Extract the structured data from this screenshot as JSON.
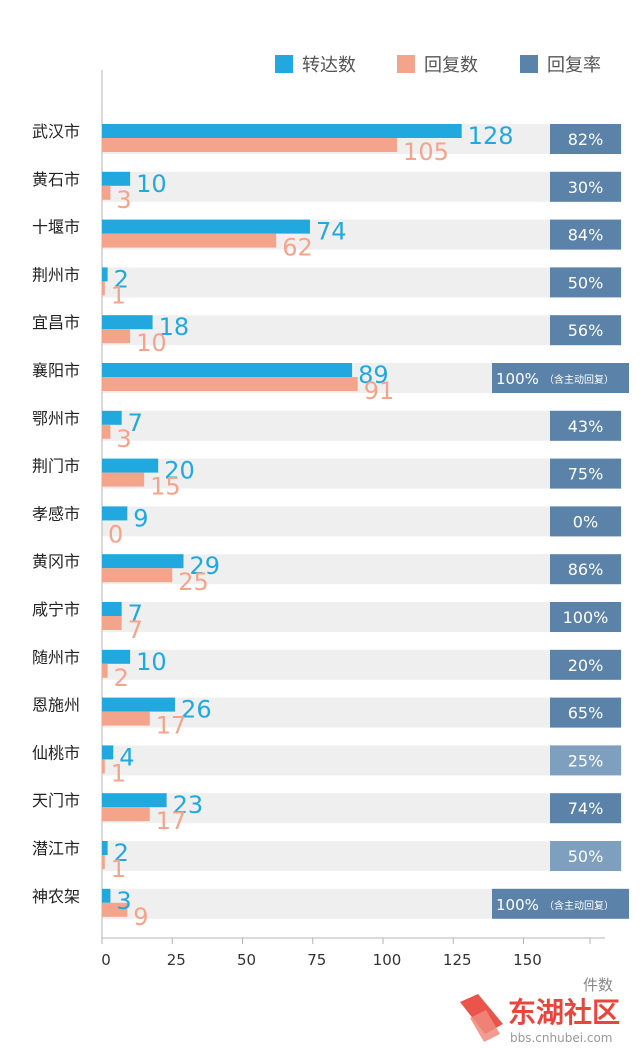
{
  "chart_data": {
    "type": "bar",
    "orientation": "horizontal",
    "legend": {
      "placement": "top-right",
      "entries": [
        {
          "name": "转达数",
          "color": "#21a9df"
        },
        {
          "name": "回复数",
          "color": "#f5a48c"
        },
        {
          "name": "回复率",
          "color": "#5b82a8"
        }
      ]
    },
    "categories": [
      "武汉市",
      "黄石市",
      "十堰市",
      "荆州市",
      "宜昌市",
      "襄阳市",
      "鄂州市",
      "荆门市",
      "孝感市",
      "黄冈市",
      "咸宁市",
      "随州市",
      "恩施州",
      "仙桃市",
      "天门市",
      "潜江市",
      "神农架"
    ],
    "series": [
      {
        "name": "转达数",
        "color": "#21a9df",
        "values": [
          128,
          10,
          74,
          2,
          18,
          89,
          7,
          20,
          9,
          29,
          7,
          10,
          26,
          4,
          23,
          2,
          3
        ]
      },
      {
        "name": "回复数",
        "color": "#f5a48c",
        "values": [
          105,
          3,
          62,
          1,
          10,
          91,
          3,
          15,
          0,
          25,
          7,
          2,
          17,
          1,
          17,
          1,
          9
        ]
      }
    ],
    "rate_badges": [
      "82%",
      "30%",
      "84%",
      "50%",
      "56%",
      "100%",
      "43%",
      "75%",
      "0%",
      "86%",
      "100%",
      "20%",
      "65%",
      "25%",
      "74%",
      "50%",
      "100%"
    ],
    "rate_badge_notes": [
      "",
      "",
      "",
      "",
      "",
      "（含主动回复）",
      "",
      "",
      "",
      "",
      "",
      "",
      "",
      "",
      "",
      "",
      "（含主动回复）"
    ],
    "rate_badge_colors": [
      "#5b82a8",
      "#5b82a8",
      "#5b82a8",
      "#5b82a8",
      "#5b82a8",
      "#5b82a8",
      "#5b82a8",
      "#5b82a8",
      "#5b82a8",
      "#5b82a8",
      "#5b82a8",
      "#5b82a8",
      "#5b82a8",
      "#7e9fbe",
      "#5b82a8",
      "#7e9fbe",
      "#5b82a8"
    ],
    "xticks": [
      0,
      25,
      50,
      75,
      100,
      125,
      150
    ],
    "xlim": [
      0,
      175
    ],
    "xlabel": "件数",
    "grid": false
  },
  "watermark": {
    "text": "东湖社区",
    "url": "bbs.cnhubei.com"
  }
}
